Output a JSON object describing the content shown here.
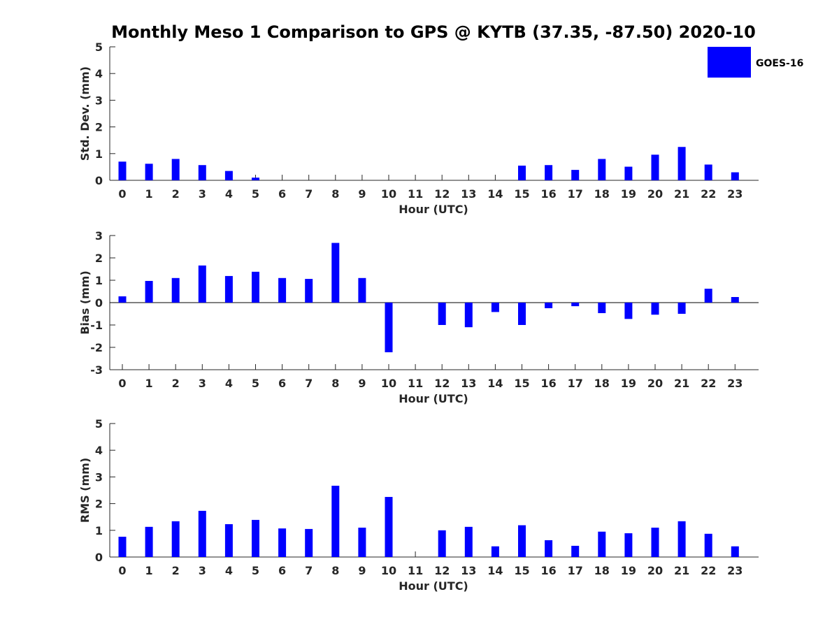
{
  "chart_data": {
    "title": "Monthly Meso 1 Comparison to GPS @ KYTB (37.35, -87.50) 2020-10",
    "legend": {
      "label": "GOES-16",
      "color": "#0000ff",
      "placement": "top-right"
    },
    "panels": [
      {
        "type": "bar",
        "ylabel": "Std. Dev. (mm)",
        "xlabel": "Hour (UTC)",
        "ylim": [
          0,
          5
        ],
        "yticks": [
          0,
          1,
          2,
          3,
          4,
          5
        ],
        "categories": [
          "0",
          "1",
          "2",
          "3",
          "4",
          "5",
          "6",
          "7",
          "8",
          "9",
          "10",
          "11",
          "12",
          "13",
          "14",
          "15",
          "16",
          "17",
          "18",
          "19",
          "20",
          "21",
          "22",
          "23"
        ],
        "values": [
          0.7,
          0.62,
          0.8,
          0.57,
          0.35,
          0.1,
          null,
          null,
          null,
          null,
          null,
          null,
          null,
          null,
          null,
          0.55,
          0.57,
          0.39,
          0.8,
          0.51,
          0.96,
          1.25,
          0.59,
          0.3
        ]
      },
      {
        "type": "bar",
        "ylabel": "Bias (mm)",
        "xlabel": "Hour (UTC)",
        "ylim": [
          -3,
          3
        ],
        "yticks": [
          -3,
          -2,
          -1,
          0,
          1,
          2,
          3
        ],
        "zero_line": true,
        "categories": [
          "0",
          "1",
          "2",
          "3",
          "4",
          "5",
          "6",
          "7",
          "8",
          "9",
          "10",
          "11",
          "12",
          "13",
          "14",
          "15",
          "16",
          "17",
          "18",
          "19",
          "20",
          "21",
          "22",
          "23"
        ],
        "values": [
          0.28,
          0.97,
          1.1,
          1.66,
          1.19,
          1.38,
          1.1,
          1.06,
          2.67,
          1.1,
          -2.22,
          null,
          -1.0,
          -1.1,
          -0.42,
          -1.0,
          -0.25,
          -0.16,
          -0.47,
          -0.73,
          -0.54,
          -0.5,
          0.62,
          0.25
        ]
      },
      {
        "type": "bar",
        "ylabel": "RMS (mm)",
        "xlabel": "Hour (UTC)",
        "ylim": [
          0,
          5
        ],
        "yticks": [
          0,
          1,
          2,
          3,
          4,
          5
        ],
        "categories": [
          "0",
          "1",
          "2",
          "3",
          "4",
          "5",
          "6",
          "7",
          "8",
          "9",
          "10",
          "11",
          "12",
          "13",
          "14",
          "15",
          "16",
          "17",
          "18",
          "19",
          "20",
          "21",
          "22",
          "23"
        ],
        "values": [
          0.76,
          1.13,
          1.34,
          1.73,
          1.23,
          1.39,
          1.07,
          1.05,
          2.67,
          1.1,
          2.25,
          null,
          1.0,
          1.13,
          0.4,
          1.19,
          0.63,
          0.42,
          0.95,
          0.89,
          1.1,
          1.34,
          0.87,
          0.4
        ]
      }
    ]
  }
}
